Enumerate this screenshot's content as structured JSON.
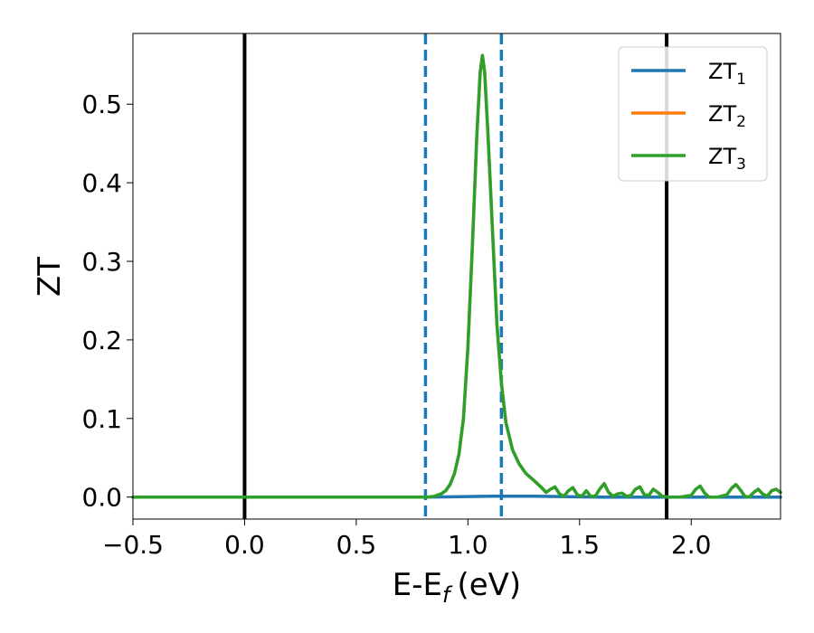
{
  "chart_data": {
    "type": "line",
    "xlabel": "E-E",
    "xlabel_sub": "f",
    "xlabel_unit": "(eV)",
    "ylabel": "ZT",
    "xlim": [
      -0.5,
      2.4
    ],
    "ylim": [
      -0.028,
      0.59
    ],
    "xticks": [
      -0.5,
      0.0,
      0.5,
      1.0,
      1.5,
      2.0
    ],
    "xtick_labels": [
      "−0.5",
      "0.0",
      "0.5",
      "1.0",
      "1.5",
      "2.0"
    ],
    "yticks": [
      0.0,
      0.1,
      0.2,
      0.3,
      0.4,
      0.5
    ],
    "ytick_labels": [
      "0.0",
      "0.1",
      "0.2",
      "0.3",
      "0.4",
      "0.5"
    ],
    "grid": false,
    "legend_position": "top-right",
    "vlines": [
      {
        "x": 0.0,
        "style": "solid",
        "color": "#000000"
      },
      {
        "x": 1.89,
        "style": "solid",
        "color": "#000000"
      },
      {
        "x": 0.81,
        "style": "dashed",
        "color": "#1f77b4"
      },
      {
        "x": 1.15,
        "style": "dashed",
        "color": "#1f77b4"
      }
    ],
    "series": [
      {
        "name": "ZT",
        "name_sub": "1",
        "color": "#1f77b4",
        "points": [
          [
            -0.5,
            0.0
          ],
          [
            0.8,
            0.0
          ],
          [
            1.1,
            0.001
          ],
          [
            1.3,
            0.001
          ],
          [
            1.6,
            0.0
          ],
          [
            2.4,
            0.0
          ]
        ]
      },
      {
        "name": "ZT",
        "name_sub": "2",
        "color": "#ff7f0e",
        "points": [
          [
            -0.5,
            0.0
          ],
          [
            0.8,
            0.0
          ],
          [
            0.82,
            0.0
          ],
          [
            0.85,
            0.001
          ],
          [
            0.88,
            0.004
          ],
          [
            0.9,
            0.008
          ],
          [
            0.92,
            0.016
          ],
          [
            0.94,
            0.03
          ],
          [
            0.96,
            0.055
          ],
          [
            0.98,
            0.1
          ],
          [
            1.0,
            0.19
          ],
          [
            1.02,
            0.32
          ],
          [
            1.04,
            0.46
          ],
          [
            1.055,
            0.54
          ],
          [
            1.065,
            0.562
          ],
          [
            1.075,
            0.54
          ],
          [
            1.09,
            0.46
          ],
          [
            1.11,
            0.34
          ],
          [
            1.13,
            0.22
          ],
          [
            1.15,
            0.145
          ],
          [
            1.17,
            0.095
          ],
          [
            1.2,
            0.06
          ],
          [
            1.23,
            0.042
          ],
          [
            1.26,
            0.03
          ],
          [
            1.3,
            0.02
          ],
          [
            1.33,
            0.012
          ],
          [
            1.35,
            0.006
          ],
          [
            1.37,
            0.01
          ],
          [
            1.39,
            0.013
          ],
          [
            1.41,
            0.004
          ],
          [
            1.43,
            0.001
          ],
          [
            1.45,
            0.008
          ],
          [
            1.47,
            0.012
          ],
          [
            1.49,
            0.003
          ],
          [
            1.51,
            0.001
          ],
          [
            1.53,
            0.008
          ],
          [
            1.55,
            0.001
          ],
          [
            1.57,
            0.001
          ],
          [
            1.59,
            0.01
          ],
          [
            1.61,
            0.017
          ],
          [
            1.63,
            0.006
          ],
          [
            1.65,
            0.001
          ],
          [
            1.67,
            0.004
          ],
          [
            1.69,
            0.005
          ],
          [
            1.71,
            0.001
          ],
          [
            1.73,
            0.002
          ],
          [
            1.75,
            0.01
          ],
          [
            1.77,
            0.013
          ],
          [
            1.79,
            0.003
          ],
          [
            1.81,
            0.002
          ],
          [
            1.83,
            0.01
          ],
          [
            1.85,
            0.006
          ],
          [
            1.87,
            0.001
          ],
          [
            1.9,
            0.0
          ],
          [
            1.95,
            0.0
          ],
          [
            2.0,
            0.002
          ],
          [
            2.02,
            0.01
          ],
          [
            2.04,
            0.014
          ],
          [
            2.06,
            0.005
          ],
          [
            2.08,
            0.0
          ],
          [
            2.12,
            0.0
          ],
          [
            2.16,
            0.003
          ],
          [
            2.18,
            0.011
          ],
          [
            2.2,
            0.016
          ],
          [
            2.22,
            0.009
          ],
          [
            2.24,
            0.001
          ],
          [
            2.26,
            0.0
          ],
          [
            2.28,
            0.006
          ],
          [
            2.3,
            0.01
          ],
          [
            2.32,
            0.004
          ],
          [
            2.34,
            0.001
          ],
          [
            2.36,
            0.008
          ],
          [
            2.38,
            0.01
          ],
          [
            2.4,
            0.006
          ]
        ]
      },
      {
        "name": "ZT",
        "name_sub": "3",
        "color": "#2ca02c",
        "points": [
          [
            -0.5,
            0.0
          ],
          [
            0.8,
            0.0
          ],
          [
            0.82,
            0.0
          ],
          [
            0.85,
            0.001
          ],
          [
            0.88,
            0.004
          ],
          [
            0.9,
            0.008
          ],
          [
            0.92,
            0.016
          ],
          [
            0.94,
            0.03
          ],
          [
            0.96,
            0.055
          ],
          [
            0.98,
            0.1
          ],
          [
            1.0,
            0.19
          ],
          [
            1.02,
            0.32
          ],
          [
            1.04,
            0.46
          ],
          [
            1.055,
            0.54
          ],
          [
            1.065,
            0.562
          ],
          [
            1.075,
            0.54
          ],
          [
            1.09,
            0.46
          ],
          [
            1.11,
            0.34
          ],
          [
            1.13,
            0.22
          ],
          [
            1.15,
            0.145
          ],
          [
            1.17,
            0.095
          ],
          [
            1.2,
            0.06
          ],
          [
            1.23,
            0.042
          ],
          [
            1.26,
            0.03
          ],
          [
            1.3,
            0.02
          ],
          [
            1.33,
            0.012
          ],
          [
            1.35,
            0.006
          ],
          [
            1.37,
            0.01
          ],
          [
            1.39,
            0.013
          ],
          [
            1.41,
            0.004
          ],
          [
            1.43,
            0.001
          ],
          [
            1.45,
            0.008
          ],
          [
            1.47,
            0.012
          ],
          [
            1.49,
            0.003
          ],
          [
            1.51,
            0.001
          ],
          [
            1.53,
            0.008
          ],
          [
            1.55,
            0.001
          ],
          [
            1.57,
            0.001
          ],
          [
            1.59,
            0.01
          ],
          [
            1.61,
            0.017
          ],
          [
            1.63,
            0.006
          ],
          [
            1.65,
            0.001
          ],
          [
            1.67,
            0.004
          ],
          [
            1.69,
            0.005
          ],
          [
            1.71,
            0.001
          ],
          [
            1.73,
            0.002
          ],
          [
            1.75,
            0.01
          ],
          [
            1.77,
            0.013
          ],
          [
            1.79,
            0.003
          ],
          [
            1.81,
            0.002
          ],
          [
            1.83,
            0.01
          ],
          [
            1.85,
            0.006
          ],
          [
            1.87,
            0.001
          ],
          [
            1.9,
            0.0
          ],
          [
            1.95,
            0.0
          ],
          [
            2.0,
            0.002
          ],
          [
            2.02,
            0.01
          ],
          [
            2.04,
            0.014
          ],
          [
            2.06,
            0.005
          ],
          [
            2.08,
            0.0
          ],
          [
            2.12,
            0.0
          ],
          [
            2.16,
            0.003
          ],
          [
            2.18,
            0.011
          ],
          [
            2.2,
            0.016
          ],
          [
            2.22,
            0.009
          ],
          [
            2.24,
            0.001
          ],
          [
            2.26,
            0.0
          ],
          [
            2.28,
            0.006
          ],
          [
            2.3,
            0.01
          ],
          [
            2.32,
            0.004
          ],
          [
            2.34,
            0.001
          ],
          [
            2.36,
            0.008
          ],
          [
            2.38,
            0.01
          ],
          [
            2.4,
            0.006
          ]
        ]
      }
    ]
  }
}
